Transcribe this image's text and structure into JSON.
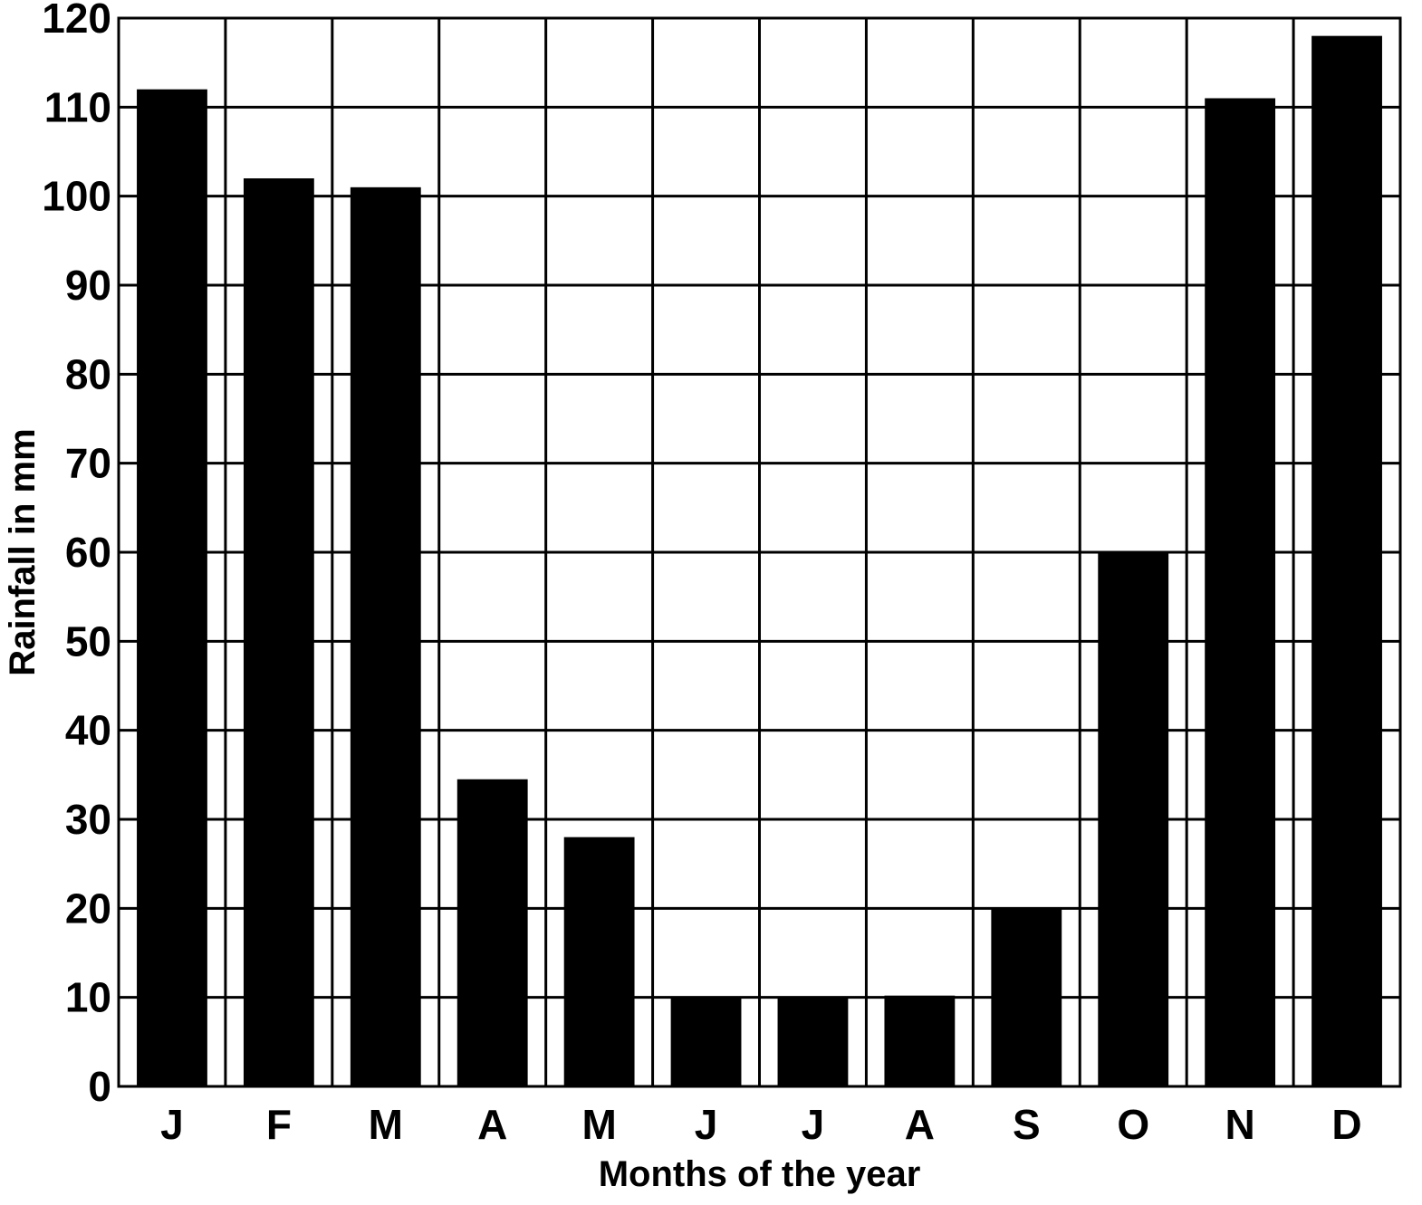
{
  "chart_data": {
    "type": "bar",
    "title": "",
    "xlabel": "Months of the year",
    "ylabel": "Rainfall in mm",
    "ylim": [
      0,
      120
    ],
    "yticks": [
      0,
      10,
      20,
      30,
      40,
      50,
      60,
      70,
      80,
      90,
      100,
      110,
      120
    ],
    "grid": true,
    "categories": [
      "J",
      "F",
      "M",
      "A",
      "M",
      "J",
      "J",
      "A",
      "S",
      "O",
      "N",
      "D"
    ],
    "values": [
      112,
      102,
      101,
      34.5,
      28,
      10,
      10,
      10.2,
      20,
      60,
      111,
      118
    ],
    "bar_color": "#000000",
    "grid_color": "#000000"
  }
}
